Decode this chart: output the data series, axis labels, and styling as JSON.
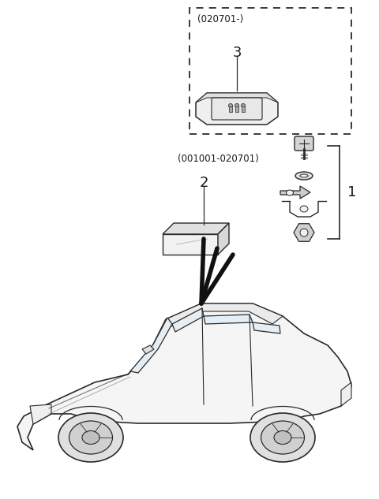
{
  "bg_color": "#ffffff",
  "line_color": "#2a2a2a",
  "text_color": "#1a1a1a",
  "dashed_box_label": "(020701-)",
  "item3_num": "3",
  "item2_label": "(001001-020701)",
  "item2_num": "2",
  "item1_num": "1",
  "figsize": [
    4.8,
    6.33
  ],
  "dpi": 100
}
